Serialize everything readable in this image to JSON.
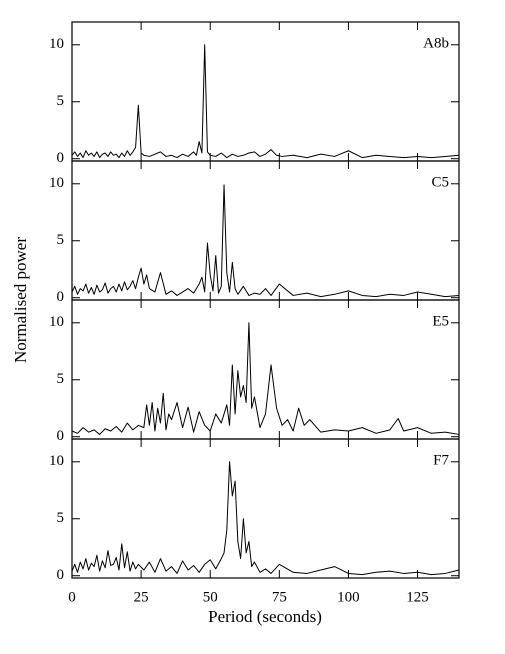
{
  "ylabel": "Normalised power",
  "xlabel": "Period  (seconds)",
  "chart_data": [
    {
      "type": "line",
      "label": "A8b",
      "xlim": [
        0,
        140
      ],
      "xticks": [
        0,
        25,
        50,
        75,
        100,
        125
      ],
      "ylim": [
        -0.2,
        12
      ],
      "yticks": [
        0,
        5,
        10
      ],
      "color": "#000000",
      "x": [
        0,
        1,
        2,
        3,
        4,
        5,
        6,
        7,
        8,
        9,
        10,
        11,
        12,
        13,
        14,
        15,
        16,
        17,
        18,
        19,
        20,
        21,
        22,
        23,
        24,
        25,
        26,
        28,
        30,
        32,
        34,
        36,
        38,
        40,
        42,
        44,
        45,
        46,
        47,
        48,
        49,
        50,
        52,
        54,
        56,
        58,
        60,
        62,
        64,
        66,
        68,
        70,
        72,
        74,
        76,
        80,
        85,
        90,
        95,
        100,
        105,
        110,
        115,
        120,
        125,
        130,
        135,
        140
      ],
      "values": [
        0.3,
        0.6,
        0.2,
        0.5,
        0.1,
        0.7,
        0.3,
        0.5,
        0.2,
        0.6,
        0.1,
        0.4,
        0.5,
        0.2,
        0.6,
        0.3,
        0.4,
        0.1,
        0.5,
        0.2,
        0.7,
        0.3,
        0.6,
        1.0,
        4.7,
        0.5,
        0.3,
        0.2,
        0.4,
        0.6,
        0.2,
        0.3,
        0.1,
        0.4,
        0.2,
        0.6,
        0.3,
        1.5,
        0.5,
        10,
        0.6,
        0.3,
        0.2,
        0.5,
        0.1,
        0.4,
        0.2,
        0.3,
        0.5,
        0.6,
        0.2,
        0.4,
        0.8,
        0.3,
        0.2,
        0.3,
        0.1,
        0.4,
        0.2,
        0.7,
        0.1,
        0.3,
        0.2,
        0.1,
        0.2,
        0.1,
        0.2,
        0.3
      ]
    },
    {
      "type": "line",
      "label": "C5",
      "xlim": [
        0,
        140
      ],
      "xticks": [
        0,
        25,
        50,
        75,
        100,
        125
      ],
      "ylim": [
        -0.2,
        12
      ],
      "yticks": [
        0,
        5,
        10
      ],
      "color": "#000000",
      "x": [
        0,
        1,
        2,
        3,
        4,
        5,
        6,
        7,
        8,
        9,
        10,
        11,
        12,
        13,
        14,
        15,
        16,
        17,
        18,
        19,
        20,
        21,
        22,
        23,
        24,
        25,
        26,
        27,
        28,
        30,
        32,
        34,
        36,
        38,
        40,
        42,
        44,
        46,
        47,
        48,
        49,
        50,
        51,
        52,
        53,
        54,
        55,
        56,
        57,
        58,
        59,
        60,
        62,
        64,
        66,
        68,
        70,
        72,
        75,
        80,
        85,
        90,
        95,
        100,
        105,
        110,
        115,
        120,
        125,
        130,
        135,
        140
      ],
      "values": [
        0.5,
        1.0,
        0.3,
        0.8,
        0.6,
        1.2,
        0.4,
        0.9,
        0.3,
        1.1,
        0.5,
        0.7,
        1.3,
        0.4,
        0.8,
        1.0,
        0.5,
        1.2,
        0.6,
        1.4,
        0.7,
        1.0,
        1.5,
        0.8,
        1.8,
        2.6,
        1.2,
        2.0,
        0.8,
        0.5,
        2.2,
        0.3,
        0.6,
        0.2,
        0.5,
        0.8,
        0.4,
        1.2,
        1.8,
        0.5,
        4.8,
        2.0,
        0.6,
        3.7,
        0.4,
        1.0,
        9.9,
        2.2,
        0.5,
        3.1,
        0.8,
        0.3,
        1.0,
        0.2,
        0.4,
        0.3,
        0.8,
        0.2,
        1.2,
        0.2,
        0.4,
        0.1,
        0.3,
        0.6,
        0.2,
        0.1,
        0.3,
        0.2,
        0.5,
        0.3,
        0.1,
        0.2
      ]
    },
    {
      "type": "line",
      "label": "E5",
      "xlim": [
        0,
        140
      ],
      "xticks": [
        0,
        25,
        50,
        75,
        100,
        125
      ],
      "ylim": [
        -0.2,
        12
      ],
      "yticks": [
        0,
        5,
        10
      ],
      "color": "#000000",
      "x": [
        0,
        2,
        4,
        6,
        8,
        10,
        12,
        14,
        16,
        18,
        20,
        22,
        24,
        26,
        27,
        28,
        29,
        30,
        31,
        32,
        33,
        34,
        35,
        36,
        38,
        40,
        42,
        44,
        46,
        48,
        50,
        52,
        54,
        56,
        57,
        58,
        59,
        60,
        61,
        62,
        63,
        64,
        65,
        66,
        68,
        70,
        72,
        74,
        76,
        78,
        80,
        82,
        84,
        86,
        90,
        95,
        100,
        105,
        110,
        115,
        118,
        120,
        125,
        130,
        135,
        140
      ],
      "values": [
        0.5,
        0.3,
        0.8,
        0.4,
        0.6,
        0.2,
        0.7,
        0.5,
        0.9,
        0.4,
        1.2,
        0.6,
        1.0,
        0.8,
        2.8,
        1.0,
        3.0,
        0.5,
        2.5,
        1.2,
        3.8,
        0.6,
        2.0,
        1.5,
        3.0,
        0.8,
        2.6,
        0.4,
        2.2,
        1.0,
        0.5,
        2.0,
        1.2,
        2.8,
        1.0,
        6.3,
        2.0,
        5.8,
        3.5,
        4.5,
        3.0,
        10,
        2.5,
        3.5,
        0.8,
        2.0,
        6.3,
        2.5,
        1.0,
        1.5,
        0.5,
        2.5,
        1.0,
        1.5,
        0.4,
        0.6,
        0.5,
        0.8,
        0.3,
        0.6,
        1.6,
        0.5,
        0.8,
        0.3,
        0.4,
        0.2
      ]
    },
    {
      "type": "line",
      "label": "F7",
      "xlim": [
        0,
        140
      ],
      "xticks": [
        0,
        25,
        50,
        75,
        100,
        125
      ],
      "ylim": [
        -0.2,
        12
      ],
      "yticks": [
        0,
        5,
        10
      ],
      "color": "#000000",
      "x": [
        0,
        1,
        2,
        3,
        4,
        5,
        6,
        7,
        8,
        9,
        10,
        11,
        12,
        13,
        14,
        15,
        16,
        17,
        18,
        19,
        20,
        21,
        22,
        23,
        24,
        26,
        28,
        30,
        32,
        34,
        36,
        38,
        40,
        42,
        44,
        46,
        48,
        50,
        52,
        54,
        55,
        56,
        57,
        58,
        59,
        60,
        61,
        62,
        63,
        64,
        65,
        66,
        68,
        70,
        72,
        75,
        80,
        85,
        90,
        95,
        100,
        105,
        110,
        115,
        120,
        125,
        130,
        135,
        140
      ],
      "values": [
        0.4,
        1.0,
        0.3,
        1.2,
        0.6,
        1.5,
        0.5,
        1.1,
        0.8,
        1.8,
        0.4,
        1.3,
        0.7,
        2.2,
        0.9,
        1.0,
        1.6,
        0.5,
        2.8,
        0.7,
        2.1,
        0.4,
        1.2,
        0.6,
        1.0,
        0.5,
        1.2,
        0.3,
        1.5,
        0.4,
        0.8,
        0.2,
        1.3,
        0.5,
        0.9,
        0.3,
        1.0,
        1.4,
        0.6,
        1.5,
        2.0,
        4.0,
        10,
        7.0,
        8.3,
        3.0,
        1.5,
        5.0,
        2.0,
        3.0,
        0.8,
        1.2,
        0.3,
        0.6,
        0.2,
        1.0,
        0.3,
        0.2,
        0.5,
        0.8,
        0.2,
        0.1,
        0.3,
        0.4,
        0.2,
        0.3,
        0.1,
        0.2,
        0.5
      ]
    }
  ]
}
